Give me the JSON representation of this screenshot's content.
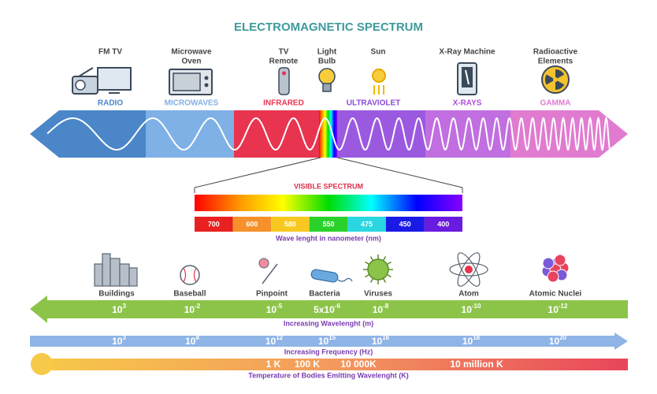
{
  "title": "ELECTROMAGNETIC SPECTRUM",
  "sources": [
    {
      "lines": [
        "FM TV"
      ]
    },
    {
      "lines": [
        "Microwave",
        "Oven"
      ]
    },
    {
      "lines": [
        "TV",
        "Remote"
      ]
    },
    {
      "lines": [
        "Light",
        "Bulb"
      ]
    },
    {
      "lines": [
        "Sun"
      ]
    },
    {
      "lines": [
        "X-Ray Machine"
      ]
    },
    {
      "lines": [
        "Radioactive",
        "Elements"
      ]
    }
  ],
  "bands": [
    "RADIO",
    "MICROWAVES",
    "INFRARED",
    "ULTRAVIOLET",
    "X-RAYS",
    "GAMMA"
  ],
  "visible": {
    "title": "VISIBLE SPECTRUM",
    "nanometers": [
      "700",
      "600",
      "580",
      "550",
      "475",
      "450",
      "400"
    ],
    "caption": "Wave lenght in nanometer (nm)"
  },
  "objects": [
    "Buildings",
    "Baseball",
    "Pinpoint",
    "Bacteria",
    "Viruses",
    "Atom",
    "Atomic Nuclei"
  ],
  "wavelength": {
    "values": [
      {
        "base": "10",
        "exp": "3"
      },
      {
        "base": "10",
        "exp": "-2"
      },
      {
        "base": "10",
        "exp": "-5"
      },
      {
        "base": "5x10",
        "exp": "-6"
      },
      {
        "base": "10",
        "exp": "-8"
      },
      {
        "base": "10",
        "exp": "-10"
      },
      {
        "base": "10",
        "exp": "-12"
      }
    ],
    "caption": "Increasing Wavelenght (m)"
  },
  "frequency": {
    "values": [
      {
        "base": "10",
        "exp": "3"
      },
      {
        "base": "10",
        "exp": "8"
      },
      {
        "base": "10",
        "exp": "12"
      },
      {
        "base": "10",
        "exp": "15"
      },
      {
        "base": "10",
        "exp": "16"
      },
      {
        "base": "10",
        "exp": "18"
      },
      {
        "base": "10",
        "exp": "20"
      }
    ],
    "caption": "Increasing Frequency (Hz)"
  },
  "temperature": {
    "values": [
      "1 K",
      "100 K",
      "10 000K",
      "10 million K"
    ],
    "caption": "Temperature of Bodies Emitting Wavelenght (K)"
  }
}
